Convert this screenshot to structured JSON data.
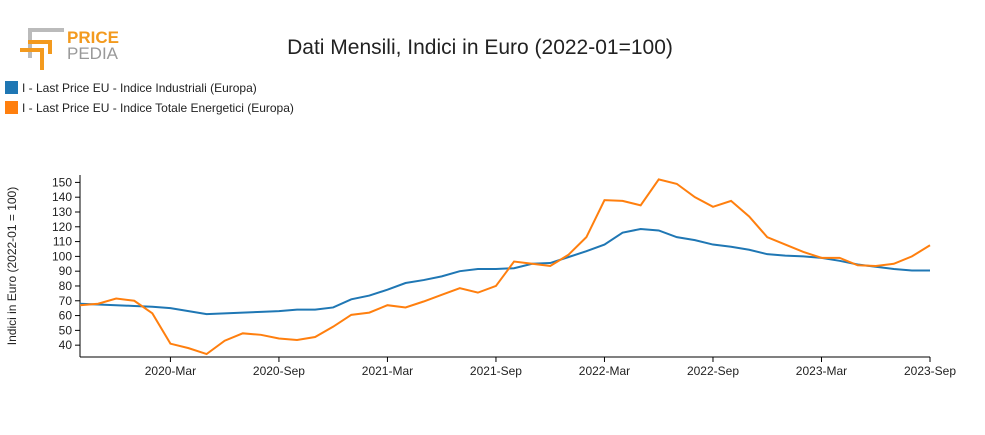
{
  "logo": {
    "top": "PRICE",
    "bottom": "PEDIA"
  },
  "chart_data": {
    "type": "line",
    "title": "Dati Mensili, Indici in Euro (2022-01=100)",
    "y_label": "Indici in Euro (2022-01 = 100)",
    "categories": [
      null,
      null,
      null,
      null,
      null,
      "2020-Mar",
      null,
      null,
      null,
      null,
      null,
      "2020-Sep",
      null,
      null,
      null,
      null,
      null,
      "2021-Mar",
      null,
      null,
      null,
      null,
      null,
      "2021-Sep",
      null,
      null,
      null,
      null,
      null,
      "2022-Mar",
      null,
      null,
      null,
      null,
      null,
      "2022-Sep",
      null,
      null,
      null,
      null,
      null,
      "2023-Mar",
      null,
      null,
      null,
      null,
      null,
      "2023-Sep"
    ],
    "series": [
      {
        "name": "I - Last Price EU - Indice Industriali (Europa)",
        "color": "#1f77b4",
        "values": [
          68,
          67.5,
          67,
          66.5,
          66,
          65,
          63,
          61,
          61.5,
          62,
          62.5,
          63,
          64,
          64,
          65.5,
          71,
          73.5,
          77.5,
          82,
          84,
          86.5,
          90,
          91.5,
          91.5,
          92,
          95,
          95.5,
          99.5,
          103.5,
          108,
          116,
          118.5,
          117.5,
          113,
          111,
          108,
          106.5,
          104.5,
          101.5,
          100.5,
          100,
          99,
          97,
          94.5,
          93,
          91.5,
          90.5,
          90.5
        ]
      },
      {
        "name": "I - Last Price EU - Indice Totale Energetici (Europa)",
        "color": "#ff7f0e",
        "values": [
          67,
          68,
          71.5,
          70,
          61.5,
          41,
          38,
          34,
          43,
          48,
          47,
          44.5,
          43.5,
          45.5,
          52.5,
          60.5,
          62,
          67,
          65.5,
          69.5,
          74,
          78.5,
          75.5,
          80,
          96.5,
          95,
          93.5,
          101,
          113,
          138,
          137.5,
          134.5,
          152,
          149,
          140,
          133.5,
          137.5,
          127,
          113,
          108,
          103,
          99,
          99,
          94,
          93.5,
          95,
          100,
          107.5
        ]
      }
    ],
    "ylim": [
      32,
      155
    ],
    "yticks": [
      40,
      50,
      60,
      70,
      80,
      90,
      100,
      110,
      120,
      130,
      140,
      150
    ]
  }
}
